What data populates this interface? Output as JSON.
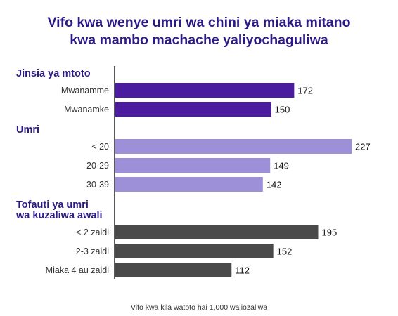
{
  "title_lines": [
    "Vifo kwa wenye umri wa chini ya miaka mitano",
    "kwa mambo machache yaliyochaguliwa"
  ],
  "caption": "Vifo kwa kila watoto hai 1,000 waliozaliwa",
  "chart_data": {
    "type": "bar",
    "orientation": "horizontal",
    "title": "Vifo kwa wenye umri wa chini ya miaka mitano kwa mambo machache yaliyochaguliwa",
    "xlabel": "Vifo kwa kila watoto hai 1,000 waliozaliwa",
    "xlim": [
      0,
      227
    ],
    "grid": false,
    "groups": [
      {
        "name_lines": [
          "Jinsia ya mtoto"
        ],
        "color": "#4b1d9e",
        "items": [
          {
            "label": "Mwanamme",
            "value": 172
          },
          {
            "label": "Mwanamke",
            "value": 150
          }
        ]
      },
      {
        "name_lines": [
          "Umri"
        ],
        "color": "#9d8fd8",
        "items": [
          {
            "label": "< 20",
            "value": 227
          },
          {
            "label": "20-29",
            "value": 149
          },
          {
            "label": "30-39",
            "value": 142
          }
        ]
      },
      {
        "name_lines": [
          "Tofauti ya umri",
          "wa kuzaliwa awali"
        ],
        "color": "#4a4a4a",
        "items": [
          {
            "label": "< 2 zaidi",
            "value": 195
          },
          {
            "label": "2-3 zaidi",
            "value": 152
          },
          {
            "label": "Miaka 4 au zaidi",
            "value": 112
          }
        ]
      }
    ]
  }
}
